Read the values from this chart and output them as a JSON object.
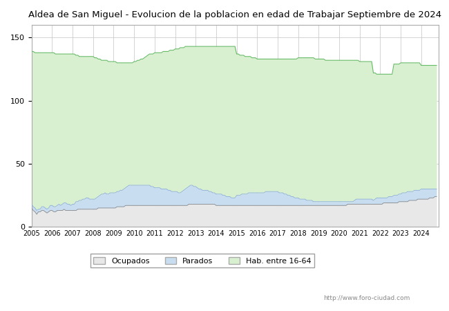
{
  "title": "Aldea de San Miguel - Evolucion de la poblacion en edad de Trabajar Septiembre de 2024",
  "title_color": "black",
  "title_fontsize": 9.5,
  "watermark": "http://www.foro-ciudad.com",
  "legend_labels": [
    "Ocupados",
    "Parados",
    "Hab. entre 16-64"
  ],
  "color_ocupados_line": "#888888",
  "color_ocupados_fill": "#e8e8e8",
  "color_parados_line": "#88aadd",
  "color_parados_fill": "#c8ddf0",
  "color_hab_line": "#66bb66",
  "color_hab_fill": "#d8f0d0",
  "ylim": [
    0,
    160
  ],
  "yticks": [
    0,
    50,
    100,
    150
  ],
  "hab_16_64": [
    139,
    139,
    138,
    138,
    138,
    138,
    138,
    138,
    138,
    138,
    138,
    138,
    138,
    138,
    137,
    137,
    137,
    137,
    137,
    137,
    137,
    137,
    137,
    137,
    137,
    137,
    136,
    136,
    135,
    135,
    135,
    135,
    135,
    135,
    135,
    135,
    135,
    134,
    134,
    133,
    133,
    132,
    132,
    132,
    132,
    131,
    131,
    131,
    131,
    131,
    130,
    130,
    130,
    130,
    130,
    130,
    130,
    130,
    130,
    130,
    131,
    131,
    132,
    132,
    133,
    133,
    134,
    135,
    136,
    137,
    137,
    137,
    138,
    138,
    138,
    138,
    138,
    139,
    139,
    139,
    139,
    140,
    140,
    140,
    141,
    141,
    141,
    142,
    142,
    142,
    143,
    143,
    143,
    143,
    143,
    143,
    143,
    143,
    143,
    143,
    143,
    143,
    143,
    143,
    143,
    143,
    143,
    143,
    143,
    143,
    143,
    143,
    143,
    143,
    143,
    143,
    143,
    143,
    143,
    143,
    137,
    137,
    136,
    136,
    136,
    135,
    135,
    135,
    135,
    134,
    134,
    134,
    133,
    133,
    133,
    133,
    133,
    133,
    133,
    133,
    133,
    133,
    133,
    133,
    133,
    133,
    133,
    133,
    133,
    133,
    133,
    133,
    133,
    133,
    133,
    133,
    134,
    134,
    134,
    134,
    134,
    134,
    134,
    134,
    134,
    134,
    133,
    133,
    133,
    133,
    133,
    133,
    132,
    132,
    132,
    132,
    132,
    132,
    132,
    132,
    132,
    132,
    132,
    132,
    132,
    132,
    132,
    132,
    132,
    132,
    132,
    132,
    131,
    131,
    131,
    131,
    131,
    131,
    131,
    131,
    122,
    122,
    121,
    121,
    121,
    121,
    121,
    121,
    121,
    121,
    121,
    121,
    129,
    129,
    129,
    129,
    130,
    130,
    130,
    130,
    130,
    130,
    130,
    130,
    130,
    130,
    130,
    130,
    128,
    128,
    128,
    128,
    128,
    128,
    128,
    128,
    128,
    128
  ],
  "parados": [
    18,
    16,
    15,
    13,
    14,
    14,
    16,
    16,
    15,
    14,
    15,
    17,
    17,
    16,
    16,
    17,
    18,
    17,
    18,
    19,
    19,
    18,
    18,
    17,
    18,
    18,
    20,
    20,
    21,
    21,
    22,
    22,
    23,
    23,
    22,
    22,
    22,
    22,
    23,
    24,
    25,
    26,
    26,
    27,
    26,
    26,
    27,
    27,
    27,
    27,
    28,
    28,
    29,
    29,
    30,
    31,
    32,
    33,
    33,
    33,
    33,
    33,
    33,
    33,
    33,
    33,
    33,
    33,
    33,
    33,
    32,
    32,
    31,
    31,
    31,
    31,
    30,
    30,
    30,
    30,
    29,
    29,
    28,
    28,
    28,
    28,
    27,
    27,
    28,
    29,
    30,
    31,
    32,
    33,
    33,
    32,
    32,
    31,
    30,
    30,
    29,
    29,
    29,
    29,
    28,
    28,
    27,
    27,
    26,
    26,
    26,
    26,
    25,
    25,
    24,
    24,
    24,
    23,
    23,
    23,
    25,
    25,
    25,
    26,
    26,
    26,
    26,
    27,
    27,
    27,
    27,
    27,
    27,
    27,
    27,
    27,
    27,
    28,
    28,
    28,
    28,
    28,
    28,
    28,
    28,
    27,
    27,
    27,
    26,
    26,
    25,
    25,
    24,
    24,
    23,
    23,
    23,
    22,
    22,
    22,
    22,
    21,
    21,
    21,
    21,
    20,
    20,
    20,
    20,
    20,
    20,
    20,
    20,
    20,
    20,
    20,
    20,
    20,
    20,
    20,
    20,
    20,
    20,
    20,
    20,
    20,
    20,
    20,
    20,
    21,
    22,
    22,
    22,
    22,
    22,
    22,
    22,
    22,
    22,
    22,
    21,
    22,
    23,
    23,
    23,
    23,
    23,
    23,
    23,
    24,
    24,
    24,
    25,
    25,
    25,
    26,
    26,
    27,
    27,
    27,
    28,
    28,
    28,
    28,
    29,
    29,
    29,
    29,
    30,
    30,
    30,
    30,
    30,
    30,
    30,
    30,
    30,
    30
  ],
  "ocupados": [
    15,
    13,
    12,
    10,
    12,
    12,
    13,
    13,
    12,
    11,
    12,
    13,
    13,
    12,
    12,
    13,
    13,
    13,
    13,
    14,
    13,
    13,
    13,
    13,
    13,
    13,
    13,
    14,
    14,
    14,
    14,
    14,
    14,
    14,
    14,
    14,
    14,
    14,
    14,
    15,
    15,
    15,
    15,
    15,
    15,
    15,
    15,
    15,
    15,
    15,
    16,
    16,
    16,
    16,
    16,
    17,
    17,
    17,
    17,
    17,
    17,
    17,
    17,
    17,
    17,
    17,
    17,
    17,
    17,
    17,
    17,
    17,
    17,
    17,
    17,
    17,
    17,
    17,
    17,
    17,
    17,
    17,
    17,
    17,
    17,
    17,
    17,
    17,
    17,
    17,
    17,
    17,
    18,
    18,
    18,
    18,
    18,
    18,
    18,
    18,
    18,
    18,
    18,
    18,
    18,
    18,
    18,
    18,
    17,
    17,
    17,
    17,
    17,
    17,
    17,
    17,
    17,
    17,
    17,
    17,
    17,
    17,
    17,
    17,
    17,
    17,
    17,
    17,
    17,
    17,
    17,
    17,
    17,
    17,
    17,
    17,
    17,
    17,
    17,
    17,
    17,
    17,
    17,
    17,
    17,
    17,
    17,
    17,
    17,
    17,
    17,
    17,
    17,
    17,
    17,
    17,
    17,
    17,
    17,
    17,
    17,
    17,
    17,
    17,
    17,
    17,
    17,
    17,
    17,
    17,
    17,
    17,
    17,
    17,
    17,
    17,
    17,
    17,
    17,
    17,
    17,
    17,
    17,
    17,
    17,
    18,
    18,
    18,
    18,
    18,
    18,
    18,
    18,
    18,
    18,
    18,
    18,
    18,
    18,
    18,
    18,
    18,
    18,
    18,
    18,
    18,
    19,
    19,
    19,
    19,
    19,
    19,
    19,
    19,
    19,
    20,
    20,
    20,
    20,
    20,
    20,
    21,
    21,
    21,
    21,
    21,
    22,
    22,
    22,
    22,
    22,
    22,
    22,
    23,
    23,
    23,
    24,
    24
  ]
}
